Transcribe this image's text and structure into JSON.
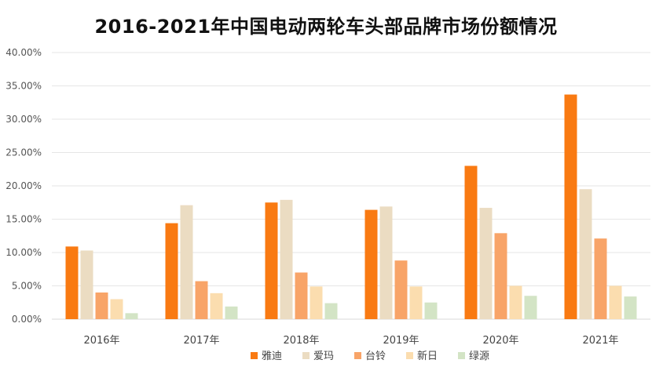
{
  "chart_data": {
    "type": "bar",
    "title": "2016-2021年中国电动两轮车头部品牌市场份额情况",
    "xlabel": "",
    "ylabel": "",
    "categories": [
      "2016年",
      "2017年",
      "2018年",
      "2019年",
      "2020年",
      "2021年"
    ],
    "ylim": [
      0,
      40
    ],
    "yticks": [
      "0.00%",
      "5.00%",
      "10.00%",
      "15.00%",
      "20.00%",
      "25.00%",
      "30.00%",
      "35.00%",
      "40.00%"
    ],
    "grid": true,
    "legend_position": "bottom",
    "series": [
      {
        "name": "雅迪",
        "color": "#F97A12",
        "values": [
          10.9,
          14.4,
          17.5,
          16.4,
          23.0,
          33.7
        ]
      },
      {
        "name": "爱玛",
        "color": "#EBDCC2",
        "values": [
          10.3,
          17.1,
          17.9,
          16.9,
          16.7,
          19.5
        ]
      },
      {
        "name": "台铃",
        "color": "#F8A468",
        "values": [
          4.0,
          5.7,
          7.0,
          8.8,
          12.9,
          12.1
        ]
      },
      {
        "name": "新日",
        "color": "#FBDDAF",
        "values": [
          3.0,
          3.9,
          4.9,
          4.9,
          5.0,
          5.0
        ]
      },
      {
        "name": "绿源",
        "color": "#D3E4C5",
        "values": [
          0.9,
          1.9,
          2.4,
          2.5,
          3.5,
          3.4
        ]
      }
    ]
  }
}
